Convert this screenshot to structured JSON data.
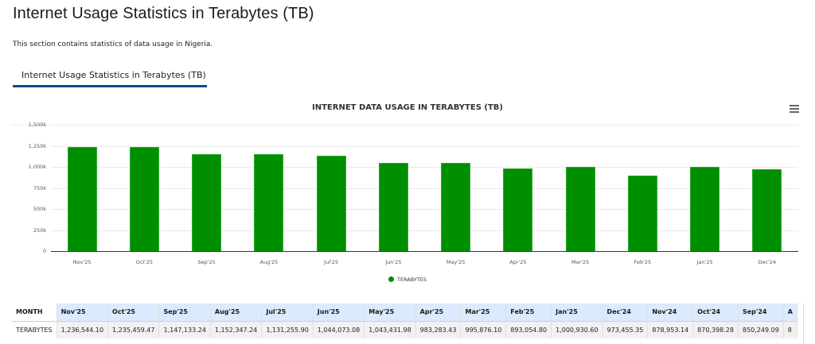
{
  "page": {
    "title": "Internet Usage Statistics in Terabytes (TB)",
    "description": "This section contains statistics of data usage in Nigeria.",
    "tab_label": "Internet Usage Statistics in Terabytes (TB)"
  },
  "chart": {
    "menu_icon": "hamburger-menu-icon",
    "bar_color": "#008f00"
  },
  "chart_data": {
    "type": "bar",
    "title": "INTERNET DATA USAGE IN TERABYTES (TB)",
    "xlabel": "",
    "ylabel": "",
    "ylim": [
      0,
      1500000
    ],
    "yticks": [
      "0",
      "250k",
      "500k",
      "750k",
      "1,000k",
      "1,250k",
      "1,500k"
    ],
    "grid": true,
    "legend_position": "bottom-center",
    "categories": [
      "Nov'25",
      "Oct'25",
      "Sep'25",
      "Aug'25",
      "Jul'25",
      "Jun'25",
      "May'25",
      "Apr'25",
      "Mar'25",
      "Feb'25",
      "Jan'25",
      "Dec'24"
    ],
    "series": [
      {
        "name": "TERABYTES",
        "color": "#008f00",
        "values": [
          1236544.1,
          1235459.47,
          1147133.24,
          1152347.24,
          1131255.9,
          1044073.08,
          1043431.98,
          983283.43,
          995876.1,
          893054.8,
          1000930.6,
          973455.35
        ]
      }
    ]
  },
  "table": {
    "row_header_1": "MONTH",
    "row_header_2": "TERABYTES",
    "columns": [
      "Nov'25",
      "Oct'25",
      "Sep'25",
      "Aug'25",
      "Jul'25",
      "Jun'25",
      "May'25",
      "Apr'25",
      "Mar'25",
      "Feb'25",
      "Jan'25",
      "Dec'24",
      "Nov'24",
      "Oct'24",
      "Sep'24",
      "A"
    ],
    "values": [
      "1,236,544.10",
      "1,235,459.47",
      "1,147,133.24",
      "1,152,347.24",
      "1,131,255.90",
      "1,044,073.08",
      "1,043,431.98",
      "983,283.43",
      "995,876.10",
      "893,054.80",
      "1,000,930.60",
      "973,455.35",
      "878,953.14",
      "870,398.28",
      "850,249.09",
      "8"
    ]
  }
}
